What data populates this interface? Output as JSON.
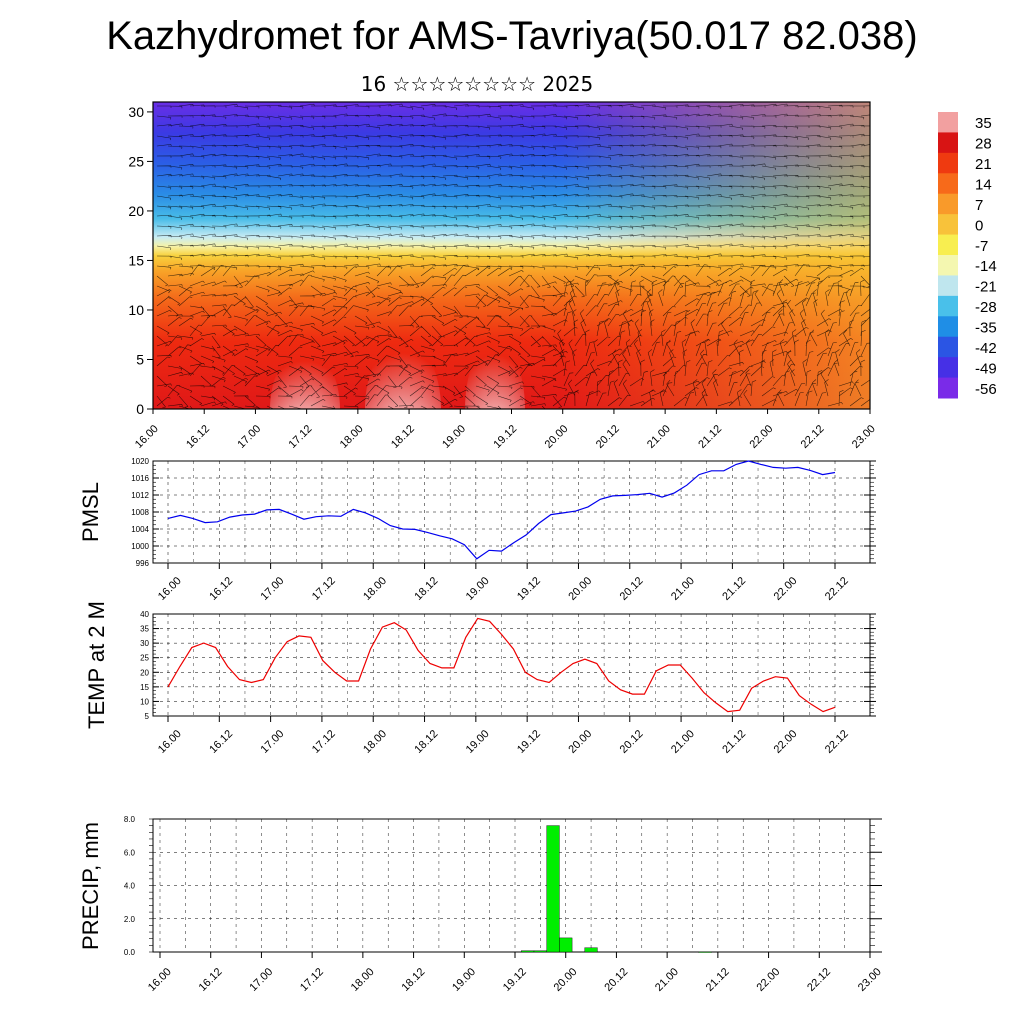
{
  "title": "Kazhydromet for AMS-Tavriya(50.017 82.038)",
  "subtitle": "16 ☆☆☆☆☆☆☆☆ 2025",
  "time_ticks": [
    "16.00",
    "16.12",
    "17.00",
    "17.12",
    "18.00",
    "18.12",
    "19.00",
    "19.12",
    "20.00",
    "20.12",
    "21.00",
    "21.12",
    "22.00",
    "22.12",
    "23.00"
  ],
  "chart_data": [
    {
      "id": "cross-section",
      "type": "heatmap",
      "title": "",
      "xlabel": "",
      "ylabel": "",
      "x_ticks": [
        "16.00",
        "16.12",
        "17.00",
        "17.12",
        "18.00",
        "18.12",
        "19.00",
        "19.12",
        "20.00",
        "20.12",
        "21.00",
        "21.12",
        "22.00",
        "22.12",
        "23.00"
      ],
      "y_ticks": [
        0,
        5,
        10,
        15,
        20,
        25,
        30
      ],
      "ylim": [
        0,
        31
      ],
      "colorbar_labels": [
        "35",
        "28",
        "21",
        "14",
        "7",
        "0",
        "-7",
        "-14",
        "-21",
        "-28",
        "-35",
        "-42",
        "-49",
        "-56"
      ],
      "colorbar_colors": [
        "#f2a0a0",
        "#d81414",
        "#ef3a10",
        "#f76a1a",
        "#f99a2a",
        "#f8c23a",
        "#f8ee50",
        "#f4f7b0",
        "#bfe6ee",
        "#49c0ea",
        "#1f8ee6",
        "#2b55e4",
        "#4630e6",
        "#7a2be8"
      ]
    },
    {
      "id": "pmsl",
      "type": "line",
      "ylabel": "PMSL",
      "ylim": [
        996,
        1020
      ],
      "y_ticks": [
        996,
        1000,
        1004,
        1008,
        1012,
        1016,
        1020
      ],
      "series": [
        {
          "color": "#0000ee",
          "values": [
            1006.5,
            1007.2,
            1006.5,
            1005.5,
            1005.7,
            1006.8,
            1007.3,
            1007.5,
            1008.5,
            1008.6,
            1007.5,
            1006.3,
            1006.9,
            1007.1,
            1007.0,
            1008.6,
            1007.8,
            1006.5,
            1004.8,
            1004.0,
            1003.9,
            1003.2,
            1002.4,
            1001.7,
            1000.3,
            997.0,
            999.0,
            998.8,
            1000.8,
            1002.6,
            1005.3,
            1007.4,
            1007.8,
            1008.2,
            1009.2,
            1011.0,
            1011.8,
            1011.9,
            1012.1,
            1012.4,
            1011.5,
            1012.5,
            1014.3,
            1016.8,
            1017.7,
            1017.7,
            1019.2,
            1020.0,
            1019.2,
            1018.5,
            1018.3,
            1018.5,
            1017.8,
            1016.8,
            1017.3
          ]
        }
      ]
    },
    {
      "id": "temp2m",
      "type": "line",
      "ylabel": "TEMP at 2 M",
      "ylim": [
        5,
        40
      ],
      "y_ticks": [
        5,
        10,
        15,
        20,
        25,
        30,
        35,
        40
      ],
      "series": [
        {
          "color": "#ee0000",
          "values": [
            15,
            22,
            28.5,
            30,
            28.5,
            22,
            17.5,
            16.5,
            17.5,
            25,
            30.5,
            32.5,
            32,
            24,
            20,
            17,
            17,
            28,
            35.5,
            37,
            34.5,
            27.5,
            23,
            21.5,
            21.5,
            32,
            38.5,
            37.5,
            33,
            28,
            20,
            17.5,
            16.5,
            20,
            23,
            24.5,
            23,
            17,
            14,
            12.5,
            12.5,
            20.5,
            22.5,
            22.5,
            18,
            13,
            9.5,
            6.5,
            7,
            14.5,
            17,
            18.5,
            18,
            12,
            9,
            6.5,
            8
          ]
        }
      ]
    },
    {
      "id": "precip",
      "type": "bar",
      "ylabel": "PRECIP, mm",
      "ylim": [
        0,
        8
      ],
      "y_ticks": [
        "0.0",
        "2.0",
        "4.0",
        "6.0",
        "8.0"
      ],
      "color": "#00ee00",
      "bars": [
        {
          "time": "19.15",
          "value": 0.08
        },
        {
          "time": "19.18",
          "value": 0.08
        },
        {
          "time": "19.21",
          "value": 7.6
        },
        {
          "time": "20.00",
          "value": 0.85
        },
        {
          "time": "20.06",
          "value": 0.25
        },
        {
          "time": "21.09",
          "value": 0.02
        }
      ]
    }
  ]
}
